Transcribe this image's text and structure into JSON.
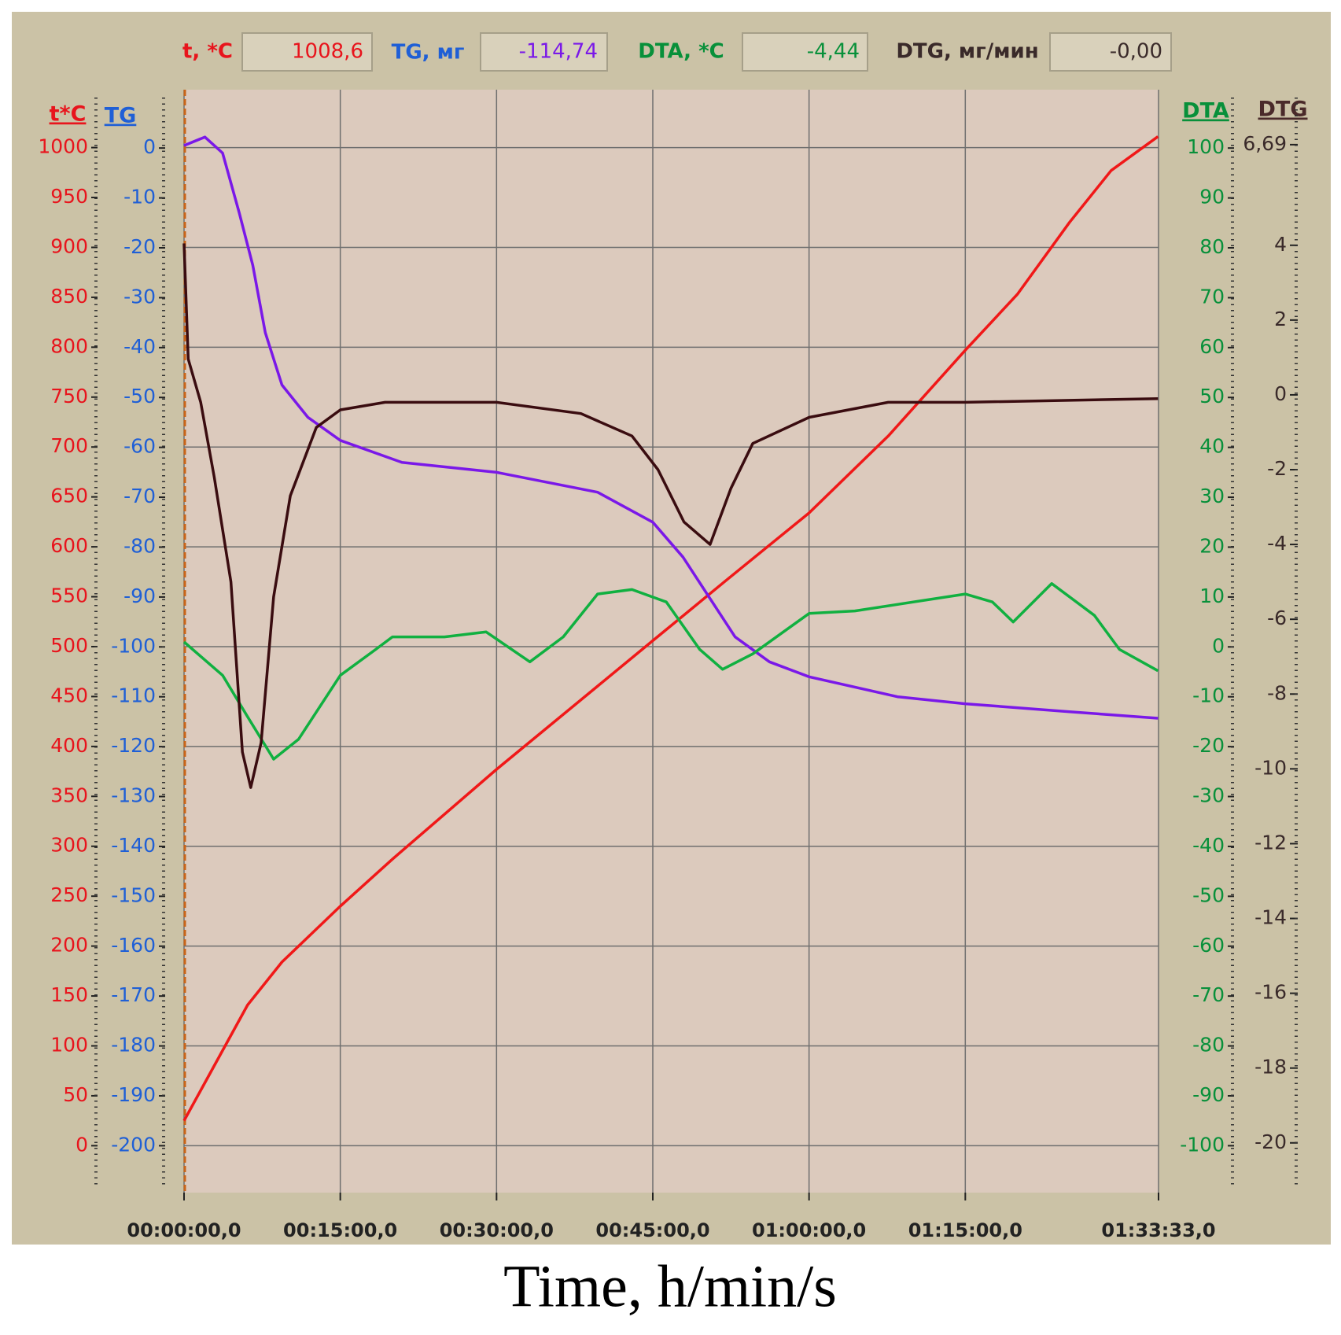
{
  "readouts": [
    {
      "label": "t, *C",
      "value": "1008,6"
    },
    {
      "label": "TG, мг",
      "value": "-114,74"
    },
    {
      "label": "DTA, *C",
      "value": "-4,44"
    },
    {
      "label": "DTG, мг/мин",
      "value": "-0,00"
    }
  ],
  "caption": "Time, h/min/s",
  "chart_data": {
    "type": "line",
    "grid": true,
    "xlim": [
      0,
      5613
    ],
    "xticks": [
      {
        "value": 0,
        "label": "00:00:00,0"
      },
      {
        "value": 900,
        "label": "00:15:00,0"
      },
      {
        "value": 1800,
        "label": "00:30:00,0"
      },
      {
        "value": 2700,
        "label": "00:45:00,0"
      },
      {
        "value": 3600,
        "label": "01:00:00,0"
      },
      {
        "value": 4500,
        "label": "01:15:00,0"
      },
      {
        "value": 5613,
        "label": "01:33:33,0"
      }
    ],
    "y_axes": [
      {
        "title": "t*C",
        "color": "#e8141c",
        "ylim": [
          -47,
          1058
        ],
        "yticks": [
          0,
          50,
          100,
          150,
          200,
          250,
          300,
          350,
          400,
          450,
          500,
          550,
          600,
          650,
          700,
          750,
          800,
          850,
          900,
          950,
          1000
        ]
      },
      {
        "title": "TG",
        "color": "#1f5fd6",
        "ylim": [
          -209.4,
          11.7
        ],
        "yticks": [
          -200,
          -190,
          -180,
          -170,
          -160,
          -150,
          -140,
          -130,
          -120,
          -110,
          -100,
          -90,
          -80,
          -70,
          -60,
          -50,
          -40,
          -30,
          -20,
          -10,
          0
        ]
      },
      {
        "title": "DTA",
        "color": "#08903a",
        "ylim": [
          -109.4,
          111.7
        ],
        "yticks": [
          -100,
          -90,
          -80,
          -70,
          -60,
          -50,
          -40,
          -30,
          -20,
          -10,
          0,
          10,
          20,
          30,
          40,
          50,
          60,
          70,
          80,
          90,
          100
        ]
      },
      {
        "title": "DTG",
        "color": "#4a2a2a",
        "ylim": [
          -21.33,
          8.16
        ],
        "yticks": [
          -20,
          -18,
          -16,
          -14,
          -12,
          -10,
          -8,
          -6,
          -4,
          -2,
          0,
          2,
          4,
          {
            "value": 6.69,
            "label": "6,69"
          }
        ]
      }
    ],
    "series": [
      {
        "color": "#f01818",
        "axis": 0,
        "x": [
          0,
          366,
          564,
          900,
          1200,
          1800,
          2700,
          3120,
          3600,
          4056,
          4500,
          4800,
          5100,
          5340,
          5610
        ],
        "values": [
          25,
          141,
          184,
          240,
          287,
          377,
          506,
          566,
          634,
          711,
          797,
          853,
          925,
          977,
          1011
        ]
      },
      {
        "color": "#7a18e8",
        "axis": 1,
        "x": [
          0,
          120,
          222,
          318,
          396,
          468,
          564,
          714,
          900,
          1254,
          1800,
          2382,
          2700,
          2874,
          3024,
          3174,
          3372,
          3600,
          4110,
          4500,
          5100,
          5610
        ],
        "values": [
          0.5,
          2.2,
          -1,
          -13,
          -23.5,
          -37,
          -47.5,
          -54,
          -58.6,
          -63,
          -65,
          -69,
          -75,
          -82,
          -90,
          -98,
          -103,
          -106,
          -110,
          -111.4,
          -113,
          -114.3
        ]
      },
      {
        "color": "#10b040",
        "axis": 2,
        "x": [
          0,
          222,
          366,
          516,
          660,
          900,
          1104,
          1200,
          1500,
          1740,
          1992,
          2184,
          2382,
          2580,
          2778,
          2970,
          3102,
          3276,
          3600,
          3864,
          4500,
          4656,
          4776,
          4998,
          5244,
          5388,
          5610
        ],
        "values": [
          1,
          -5.7,
          -14,
          -22.5,
          -18.5,
          -5.7,
          -0.5,
          2,
          2,
          3,
          -3,
          2,
          10.6,
          11.5,
          9,
          -0.5,
          -4.5,
          -1.4,
          6.7,
          7.2,
          10.6,
          9,
          5,
          12.7,
          6.3,
          -0.5,
          -4.8
        ]
      },
      {
        "color": "#3a0c10",
        "axis": 3,
        "x": [
          0,
          24,
          96,
          174,
          270,
          336,
          384,
          444,
          516,
          612,
          762,
          900,
          1158,
          1800,
          2286,
          2580,
          2730,
          2880,
          3030,
          3150,
          3276,
          3600,
          4056,
          4500,
          5610
        ],
        "values": [
          4.05,
          0.96,
          -0.2,
          -2.2,
          -5,
          -9.55,
          -10.5,
          -9.3,
          -5.4,
          -2.7,
          -0.87,
          -0.4,
          -0.2,
          -0.2,
          -0.5,
          -1.1,
          -2,
          -3.4,
          -4,
          -2.5,
          -1.3,
          -0.6,
          -0.2,
          -0.2,
          -0.1
        ]
      }
    ]
  }
}
